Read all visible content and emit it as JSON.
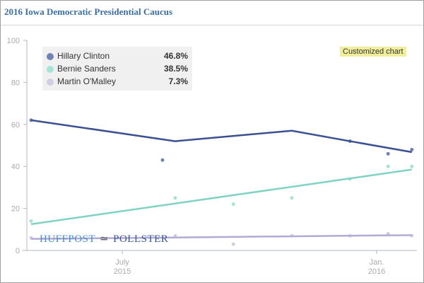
{
  "header": {
    "title": "2016 Iowa Democratic Presidential Caucus"
  },
  "badge": "Customized chart",
  "logo": {
    "left": "HUFFPOST",
    "right": "POLLSTER",
    "icon": "pen-swoosh-icon"
  },
  "chart_data": {
    "type": "line",
    "title": "2016 Iowa Democratic Presidential Caucus",
    "x_units": "months since Jan 2015",
    "xlim": [
      3.6,
      13.1
    ],
    "ylim": [
      0,
      100
    ],
    "yticks": [
      0,
      20,
      40,
      60,
      80,
      100
    ],
    "xticks": [
      {
        "x": 6,
        "label1": "July",
        "label2": "2015"
      },
      {
        "x": 12,
        "label1": "Jan.",
        "label2": "2016"
      }
    ],
    "legend_placement": "top-left",
    "series": [
      {
        "name": "Hillary Clinton",
        "value": "46.8%",
        "color": "#3c4f91",
        "dot": "#7281b5",
        "trend": [
          [
            3.85,
            62
          ],
          [
            7.25,
            52
          ],
          [
            10,
            57
          ],
          [
            11.37,
            52
          ],
          [
            12.83,
            46.8
          ]
        ],
        "points": [
          [
            3.85,
            62
          ],
          [
            6.95,
            43
          ],
          [
            11.37,
            52
          ],
          [
            12.27,
            46
          ],
          [
            12.83,
            48
          ]
        ]
      },
      {
        "name": "Bernie Sanders",
        "value": "38.5%",
        "color": "#7fd3c3",
        "dot": "#a6e2d6",
        "trend": [
          [
            3.85,
            12.5
          ],
          [
            12.83,
            38.5
          ]
        ],
        "points": [
          [
            3.85,
            14
          ],
          [
            7.25,
            25
          ],
          [
            8.62,
            22
          ],
          [
            10,
            25
          ],
          [
            11.37,
            34
          ],
          [
            12.27,
            40
          ],
          [
            12.83,
            40
          ]
        ]
      },
      {
        "name": "Martin O'Malley",
        "value": "7.3%",
        "color": "#b3a9d6",
        "dot": "#d2cde6",
        "trend": [
          [
            3.85,
            5.5
          ],
          [
            12.83,
            7.3
          ]
        ],
        "points": [
          [
            3.85,
            6
          ],
          [
            7.25,
            7
          ],
          [
            8.62,
            3
          ],
          [
            10,
            7
          ],
          [
            11.37,
            7
          ],
          [
            12.27,
            8
          ],
          [
            12.83,
            7
          ]
        ]
      }
    ]
  }
}
